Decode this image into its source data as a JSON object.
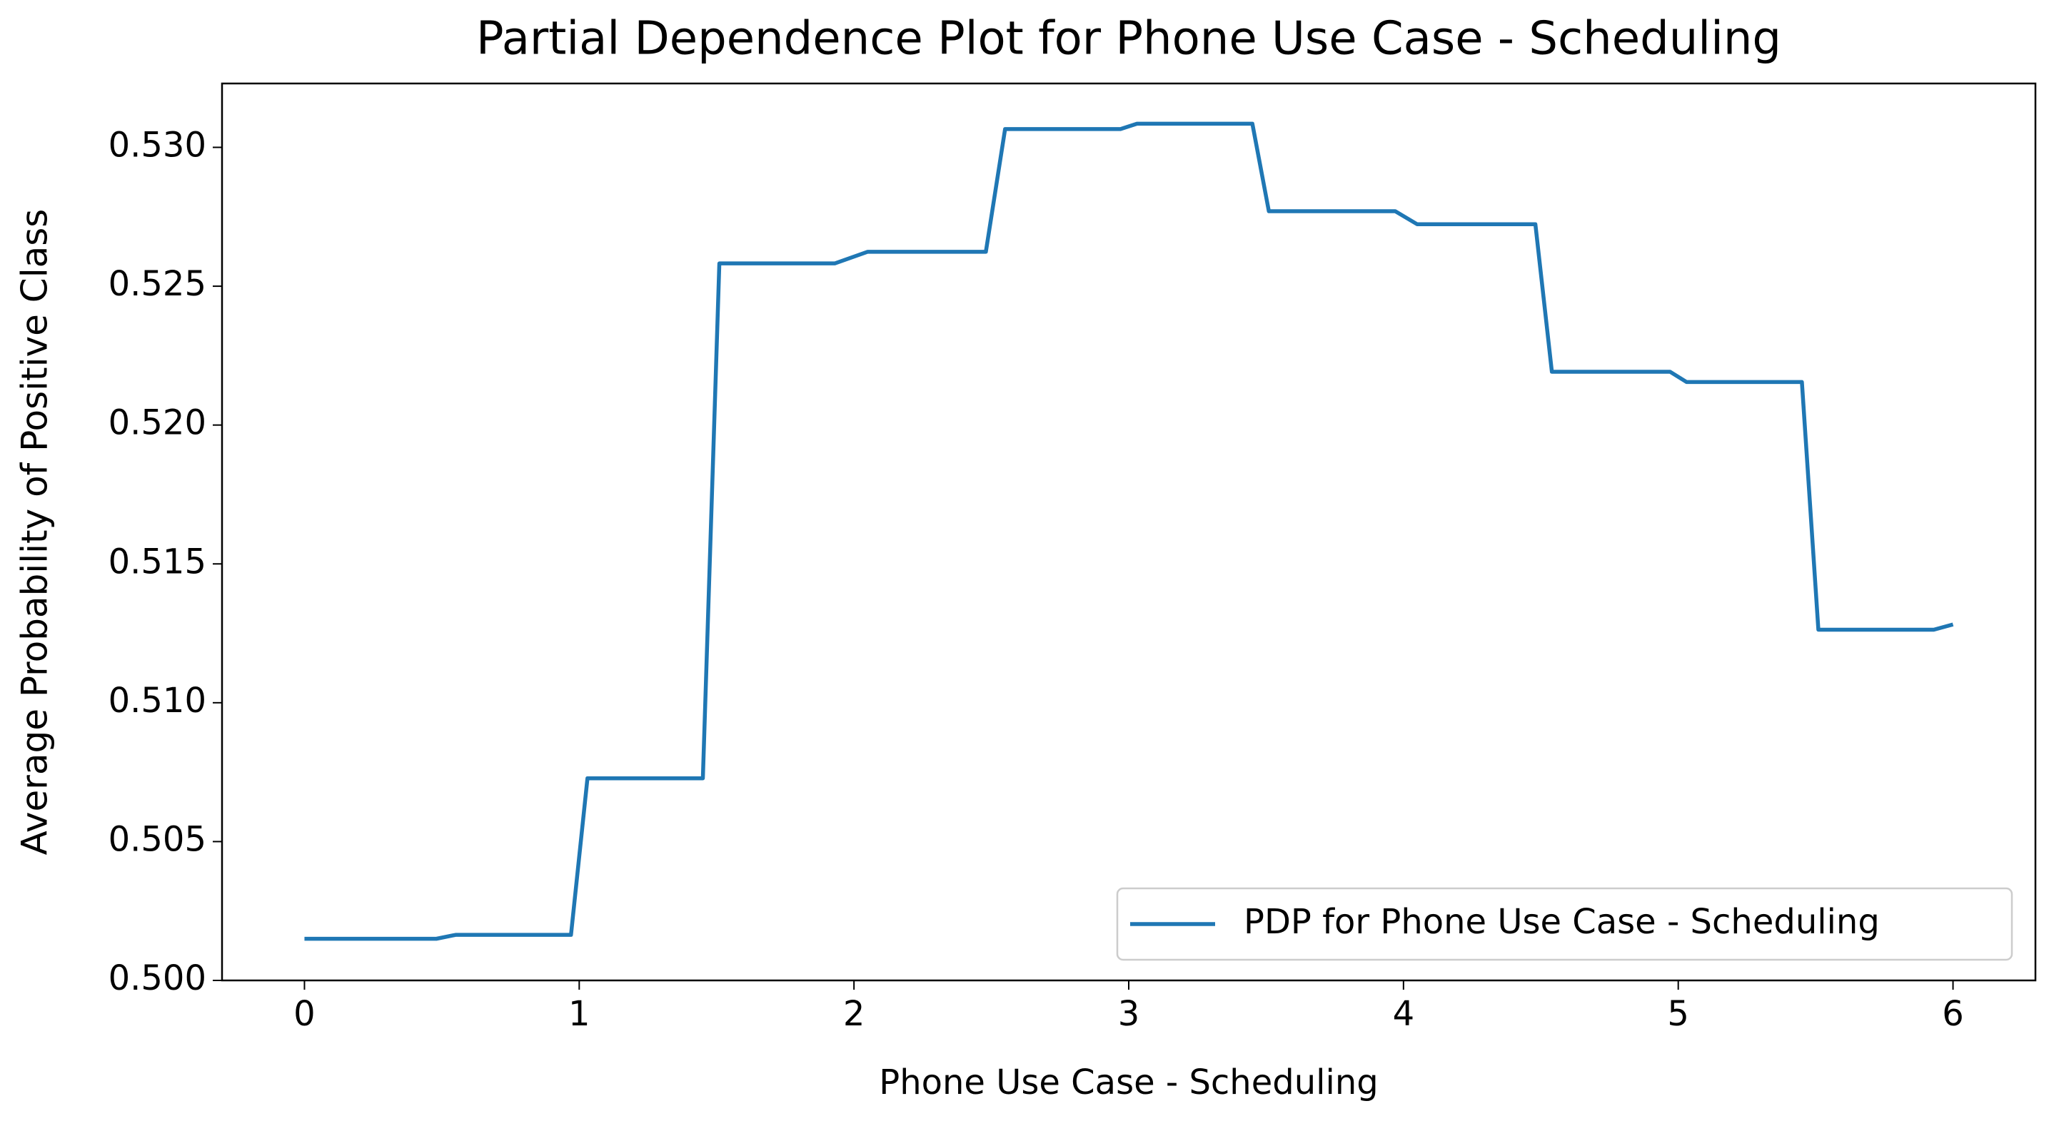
{
  "chart_data": {
    "type": "line",
    "title": "Partial Dependence Plot for Phone Use Case - Scheduling",
    "xlabel": "Phone Use Case - Scheduling",
    "ylabel": "Average Probability of Positive Class",
    "x": [
      0,
      0.48,
      0.55,
      0.97,
      1.03,
      1.45,
      1.51,
      1.93,
      2.05,
      2.48,
      2.55,
      2.97,
      3.03,
      3.45,
      3.51,
      3.97,
      4.05,
      4.48,
      4.54,
      4.97,
      5.03,
      5.45,
      5.51,
      5.93,
      6.0
    ],
    "series": [
      {
        "name": "PDP for Phone Use Case - Scheduling",
        "color": "#1f77b4",
        "values": [
          0.5015,
          0.5015,
          0.50164,
          0.50164,
          0.50728,
          0.50728,
          0.52582,
          0.52582,
          0.52624,
          0.52624,
          0.53066,
          0.53066,
          0.53085,
          0.53085,
          0.5277,
          0.5277,
          0.52723,
          0.52723,
          0.52192,
          0.52192,
          0.52155,
          0.52155,
          0.51263,
          0.51263,
          0.51282
        ]
      }
    ],
    "xlim": [
      -0.3,
      6.3
    ],
    "ylim": [
      0.5,
      0.5323
    ],
    "xticks": [
      0,
      1,
      2,
      3,
      4,
      5,
      6
    ],
    "yticks": [
      {
        "value": 0.5,
        "label": "0.500"
      },
      0.505,
      {
        "value": 0.51,
        "label": "0.510"
      },
      0.515,
      {
        "value": 0.52,
        "label": "0.520"
      },
      0.525,
      {
        "value": 0.53,
        "label": "0.530"
      }
    ],
    "legend": "lower right"
  }
}
